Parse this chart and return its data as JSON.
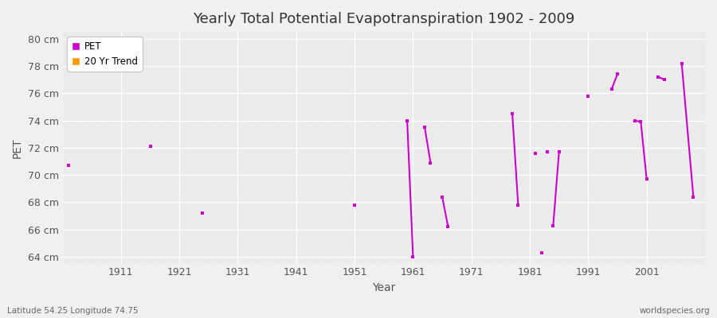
{
  "title": "Yearly Total Potential Evapotranspiration 1902 - 2009",
  "xlabel": "Year",
  "ylabel": "PET",
  "subtitle_left": "Latitude 54.25 Longitude 74.75",
  "subtitle_right": "worldspecies.org",
  "ylim": [
    63.5,
    80.5
  ],
  "xlim": [
    1901,
    2011
  ],
  "ytick_labels": [
    "64 cm",
    "66 cm",
    "68 cm",
    "70 cm",
    "72 cm",
    "74 cm",
    "76 cm",
    "78 cm",
    "80 cm"
  ],
  "ytick_values": [
    64,
    66,
    68,
    70,
    72,
    74,
    76,
    78,
    80
  ],
  "xtick_values": [
    1911,
    1921,
    1931,
    1941,
    1951,
    1961,
    1971,
    1981,
    1991,
    2001
  ],
  "pet_color": "#cc00cc",
  "trend_color": "#ff9900",
  "bg_color": "#f0f0f0",
  "plot_bg_color": "#ebebeb",
  "grid_color": "#ffffff",
  "isolated_points": [
    [
      1902,
      70.7
    ],
    [
      1916,
      72.1
    ],
    [
      1925,
      67.2
    ],
    [
      1951,
      67.8
    ],
    [
      1982,
      71.6
    ],
    [
      1983,
      64.3
    ],
    [
      1984,
      71.7
    ],
    [
      1991,
      75.8
    ]
  ],
  "pet_segments": [
    [
      [
        1960,
        74.0
      ],
      [
        1961,
        64.0
      ]
    ],
    [
      [
        1963,
        73.5
      ],
      [
        1964,
        70.9
      ]
    ],
    [
      [
        1966,
        68.4
      ],
      [
        1967,
        66.2
      ]
    ],
    [
      [
        1978,
        74.5
      ],
      [
        1979,
        67.8
      ]
    ],
    [
      [
        1985,
        66.3
      ],
      [
        1986,
        71.7
      ]
    ],
    [
      [
        1995,
        76.3
      ],
      [
        1996,
        77.4
      ]
    ],
    [
      [
        1999,
        74.0
      ],
      [
        2000,
        73.9
      ],
      [
        2001,
        69.7
      ]
    ],
    [
      [
        2003,
        77.2
      ],
      [
        2004,
        77.0
      ]
    ],
    [
      [
        2007,
        78.2
      ],
      [
        2009,
        68.4
      ]
    ]
  ]
}
